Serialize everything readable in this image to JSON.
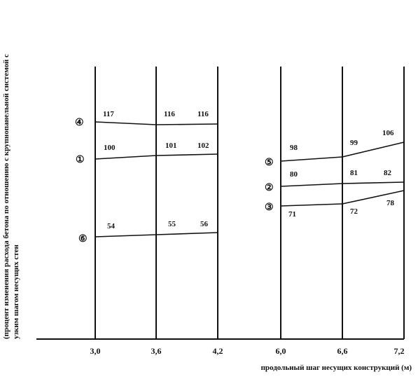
{
  "chart_data": {
    "type": "line",
    "xlabel": "продольный шаг несущих конструкций (м)",
    "ylabel_line1": "(процент изменения расхода бетона по отношению с крупнопанельной системой с",
    "ylabel_line2": "узким шагом несущих стен",
    "x_ticks": [
      "3,0",
      "3,6",
      "4,2",
      "6,0",
      "6,6",
      "7,2"
    ],
    "series": [
      {
        "marker": "④",
        "x": [
          3.0,
          3.6,
          4.2
        ],
        "values": [
          117,
          116,
          116
        ]
      },
      {
        "marker": "①",
        "x": [
          3.0,
          3.6,
          4.2
        ],
        "values": [
          100,
          101,
          102
        ]
      },
      {
        "marker": "⑥",
        "x": [
          3.0,
          3.6,
          4.2
        ],
        "values": [
          54,
          55,
          56
        ]
      },
      {
        "marker": "⑤",
        "x": [
          6.0,
          6.6,
          7.2
        ],
        "values": [
          98,
          99,
          106
        ]
      },
      {
        "marker": "②",
        "x": [
          6.0,
          6.6,
          7.2
        ],
        "values": [
          80,
          81,
          82
        ]
      },
      {
        "marker": "③",
        "x": [
          6.0,
          6.6,
          7.2
        ],
        "values": [
          71,
          72,
          78
        ]
      }
    ]
  }
}
